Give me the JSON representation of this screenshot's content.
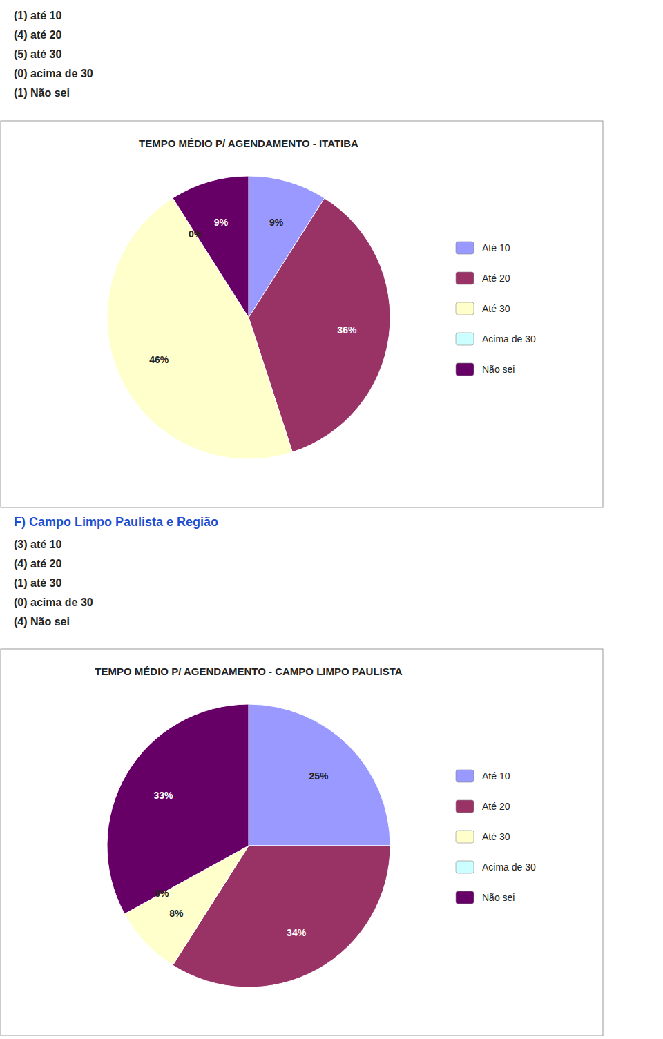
{
  "chart_data": [
    {
      "type": "pie",
      "title": "TEMPO MÉDIO P/ AGENDAMENTO - ITATIBA",
      "annotations": [
        "(1) até 10",
        "(4) até 20",
        "(5) até 30",
        "(0) acima de 30",
        "(1) Não sei"
      ],
      "categories": [
        "Até 10",
        "Até 20",
        "Até 30",
        "Acima de 30",
        "Não sei"
      ],
      "values": [
        9,
        36,
        46,
        0,
        9
      ],
      "value_labels": [
        "9%",
        "36%",
        "46%",
        "0%",
        "9%"
      ],
      "colors": [
        "#9999FF",
        "#993366",
        "#FFFFCC",
        "#CCFFFF",
        "#660066"
      ],
      "data_labels": true,
      "legend": "right"
    },
    {
      "type": "pie",
      "title": "TEMPO MÉDIO P/ AGENDAMENTO - CAMPO LIMPO PAULISTA",
      "subtitle": "F)  Campo Limpo Paulista e Região",
      "annotations": [
        "(3) até 10",
        "(4) até 20",
        "(1) até 30",
        "(0) acima de 30",
        "(4) Não sei"
      ],
      "categories": [
        "Até 10",
        "Até 20",
        "Até 30",
        "Acima de 30",
        "Não sei"
      ],
      "values": [
        25,
        34,
        8,
        0,
        33
      ],
      "value_labels": [
        "25%",
        "34%",
        "8%",
        "0%",
        "33%"
      ],
      "colors": [
        "#9999FF",
        "#993366",
        "#FFFFCC",
        "#CCFFFF",
        "#660066"
      ],
      "data_labels": true,
      "legend": "right"
    }
  ]
}
